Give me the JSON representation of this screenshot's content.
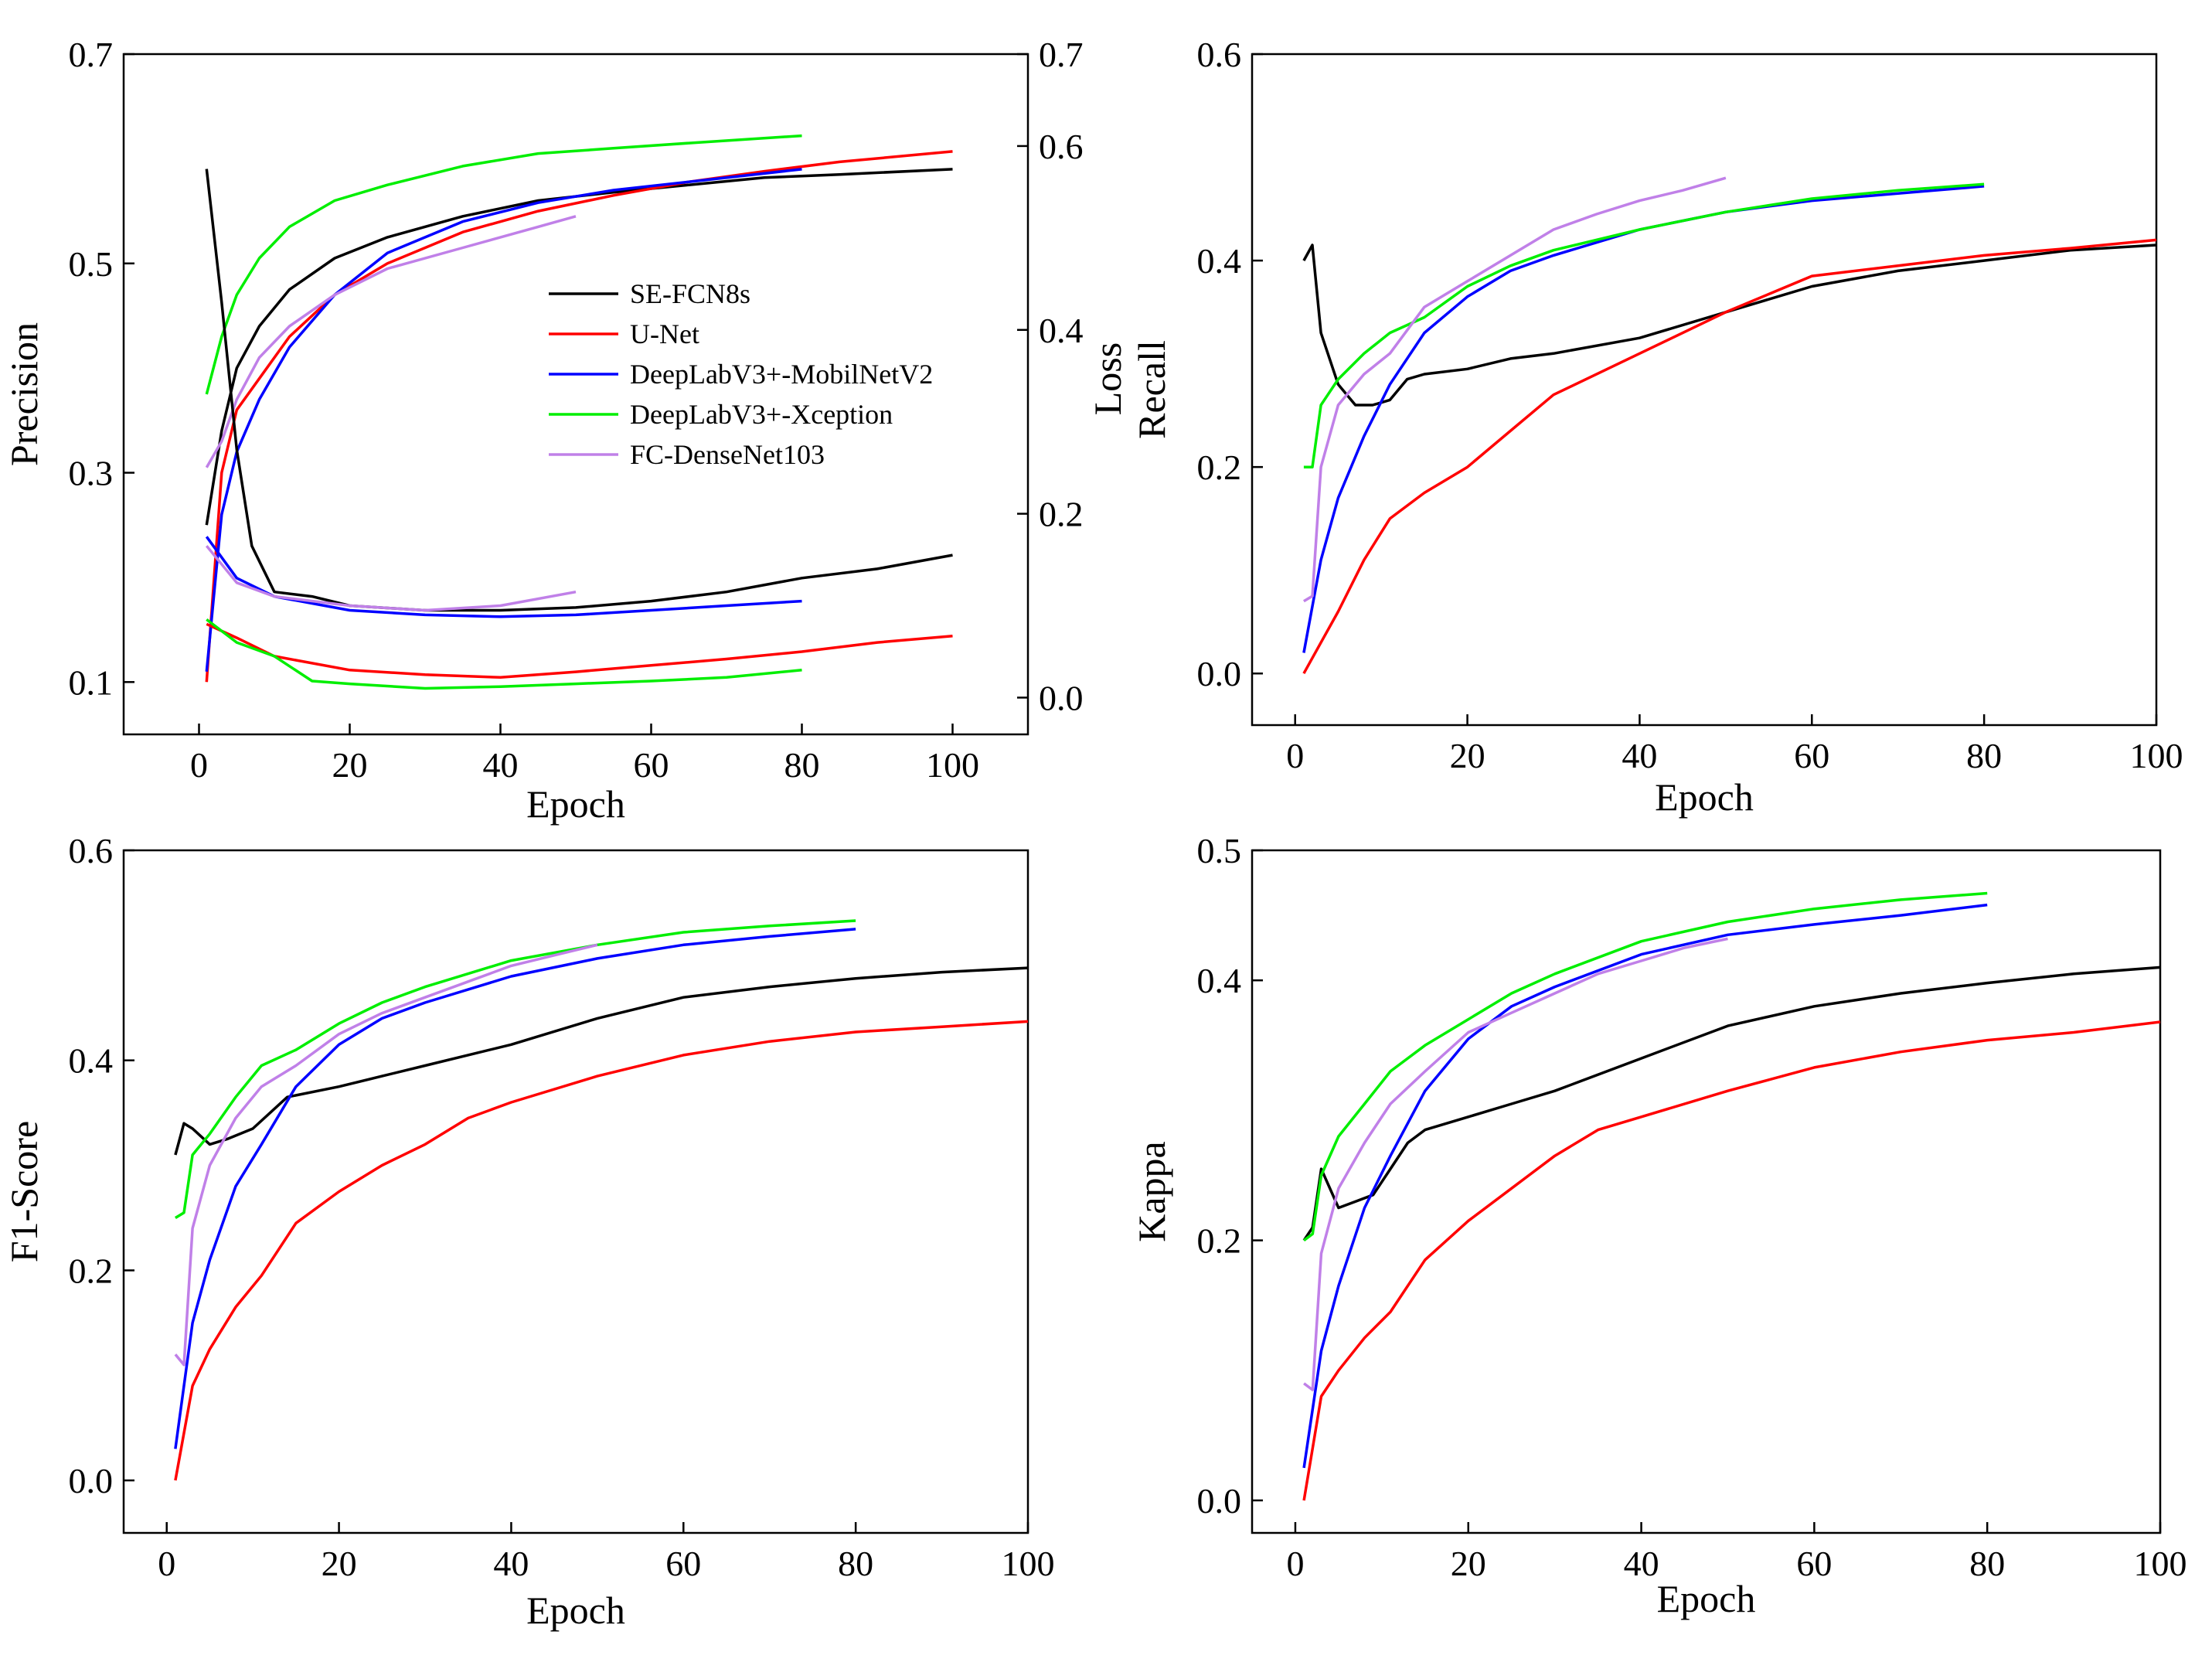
{
  "colors": {
    "SE-FCN8s": "#000000",
    "U-Net": "#ff0000",
    "DeepLabV3+-MobilNetV2": "#0000ff",
    "DeepLabV3+-Xception": "#00ee00",
    "FC-DenseNet103": "#c080e8"
  },
  "legend": {
    "entries": [
      "SE-FCN8s",
      "U-Net",
      "DeepLabV3+-MobilNetV2",
      "DeepLabV3+-Xception",
      "FC-DenseNet103"
    ]
  },
  "chart_data": [
    {
      "id": "precision",
      "type": "line",
      "title": "",
      "xlabel": "Epoch",
      "ylabel": "Precision",
      "y2label": "Loss",
      "xlim": [
        -10,
        110
      ],
      "ylim": [
        0.05,
        0.7
      ],
      "y2lim": [
        -0.04,
        0.7
      ],
      "xticks": [
        0,
        20,
        40,
        60,
        80,
        100
      ],
      "yticks": [
        0.1,
        0.3,
        0.5,
        0.7
      ],
      "y2ticks": [
        0.0,
        0.2,
        0.4,
        0.6,
        0.7
      ],
      "xtick_labels": [
        "0",
        "20",
        "40",
        "60",
        "80",
        "100"
      ],
      "ytick_labels": [
        "0.1",
        "0.3",
        "0.5",
        "0.7"
      ],
      "y2tick_labels": [
        "0.0",
        "0.2",
        "0.4",
        "0.6",
        "0.7"
      ],
      "legend_position": "center",
      "series": [
        {
          "name": "SE-FCN8s",
          "metric": "precision",
          "x": [
            1,
            3,
            5,
            8,
            12,
            18,
            25,
            35,
            45,
            55,
            65,
            75,
            85,
            100
          ],
          "values": [
            0.25,
            0.34,
            0.4,
            0.44,
            0.475,
            0.505,
            0.525,
            0.545,
            0.56,
            0.568,
            0.575,
            0.582,
            0.585,
            0.59
          ]
        },
        {
          "name": "U-Net",
          "metric": "precision",
          "x": [
            1,
            3,
            5,
            8,
            12,
            18,
            25,
            35,
            45,
            55,
            65,
            75,
            85,
            100
          ],
          "values": [
            0.1,
            0.3,
            0.36,
            0.39,
            0.43,
            0.47,
            0.5,
            0.53,
            0.55,
            0.565,
            0.578,
            0.588,
            0.597,
            0.607
          ]
        },
        {
          "name": "DeepLabV3+-MobilNetV2",
          "metric": "precision",
          "x": [
            1,
            3,
            5,
            8,
            12,
            18,
            25,
            35,
            45,
            55,
            65,
            80
          ],
          "values": [
            0.11,
            0.26,
            0.32,
            0.37,
            0.42,
            0.47,
            0.51,
            0.54,
            0.558,
            0.57,
            0.578,
            0.59
          ]
        },
        {
          "name": "DeepLabV3+-Xception",
          "metric": "precision",
          "x": [
            1,
            3,
            5,
            8,
            12,
            18,
            25,
            35,
            45,
            55,
            65,
            80
          ],
          "values": [
            0.375,
            0.43,
            0.47,
            0.505,
            0.535,
            0.56,
            0.575,
            0.593,
            0.605,
            0.61,
            0.615,
            0.622
          ]
        },
        {
          "name": "FC-DenseNet103",
          "metric": "precision",
          "x": [
            1,
            3,
            5,
            8,
            12,
            18,
            25,
            35,
            45,
            50
          ],
          "values": [
            0.305,
            0.33,
            0.37,
            0.41,
            0.44,
            0.47,
            0.495,
            0.515,
            0.535,
            0.545
          ]
        },
        {
          "name": "SE-FCN8s",
          "metric": "loss",
          "x": [
            1,
            3,
            5,
            7,
            10,
            15,
            20,
            30,
            40,
            50,
            60,
            70,
            80,
            90,
            100
          ],
          "values": [
            0.575,
            0.43,
            0.27,
            0.165,
            0.115,
            0.11,
            0.1,
            0.095,
            0.095,
            0.098,
            0.105,
            0.115,
            0.13,
            0.14,
            0.155
          ]
        },
        {
          "name": "U-Net",
          "metric": "loss",
          "x": [
            1,
            5,
            10,
            20,
            30,
            40,
            50,
            60,
            70,
            80,
            90,
            100
          ],
          "values": [
            0.08,
            0.065,
            0.045,
            0.03,
            0.025,
            0.022,
            0.028,
            0.035,
            0.042,
            0.05,
            0.06,
            0.067
          ]
        },
        {
          "name": "DeepLabV3+-MobilNetV2",
          "metric": "loss",
          "x": [
            1,
            5,
            10,
            20,
            30,
            40,
            50,
            60,
            70,
            80
          ],
          "values": [
            0.175,
            0.13,
            0.11,
            0.095,
            0.09,
            0.088,
            0.09,
            0.095,
            0.1,
            0.105
          ]
        },
        {
          "name": "DeepLabV3+-Xception",
          "metric": "loss",
          "x": [
            1,
            5,
            10,
            15,
            20,
            30,
            40,
            50,
            60,
            70,
            80
          ],
          "values": [
            0.085,
            0.06,
            0.045,
            0.018,
            0.015,
            0.01,
            0.012,
            0.015,
            0.018,
            0.022,
            0.03
          ]
        },
        {
          "name": "FC-DenseNet103",
          "metric": "loss",
          "x": [
            1,
            5,
            10,
            20,
            30,
            40,
            50
          ],
          "values": [
            0.165,
            0.125,
            0.11,
            0.1,
            0.095,
            0.1,
            0.115
          ]
        }
      ]
    },
    {
      "id": "recall",
      "type": "line",
      "title": "",
      "xlabel": "Epoch",
      "ylabel": "Recall",
      "xlim": [
        -5,
        100
      ],
      "ylim": [
        -0.05,
        0.6
      ],
      "xticks": [
        0,
        20,
        40,
        60,
        80,
        100
      ],
      "yticks": [
        0.0,
        0.2,
        0.4,
        0.6
      ],
      "xtick_labels": [
        "0",
        "20",
        "40",
        "60",
        "80",
        "100"
      ],
      "ytick_labels": [
        "0.0",
        "0.2",
        "0.4",
        "0.6"
      ],
      "series": [
        {
          "name": "SE-FCN8s",
          "x": [
            1,
            2,
            3,
            5,
            7,
            9,
            11,
            13,
            15,
            20,
            25,
            30,
            40,
            50,
            60,
            70,
            80,
            90,
            100
          ],
          "values": [
            0.4,
            0.415,
            0.33,
            0.28,
            0.26,
            0.26,
            0.265,
            0.285,
            0.29,
            0.295,
            0.305,
            0.31,
            0.325,
            0.35,
            0.375,
            0.39,
            0.4,
            0.41,
            0.415
          ]
        },
        {
          "name": "U-Net",
          "x": [
            1,
            3,
            5,
            8,
            11,
            15,
            20,
            25,
            30,
            40,
            50,
            60,
            70,
            80,
            90,
            100
          ],
          "values": [
            0.0,
            0.03,
            0.06,
            0.11,
            0.15,
            0.175,
            0.2,
            0.235,
            0.27,
            0.31,
            0.35,
            0.385,
            0.395,
            0.405,
            0.412,
            0.42
          ]
        },
        {
          "name": "DeepLabV3+-MobilNetV2",
          "x": [
            1,
            3,
            5,
            8,
            11,
            15,
            20,
            25,
            30,
            40,
            50,
            60,
            70,
            80
          ],
          "values": [
            0.02,
            0.11,
            0.17,
            0.23,
            0.28,
            0.33,
            0.365,
            0.39,
            0.405,
            0.43,
            0.447,
            0.458,
            0.465,
            0.472
          ]
        },
        {
          "name": "DeepLabV3+-Xception",
          "x": [
            1,
            2,
            3,
            5,
            8,
            11,
            15,
            20,
            25,
            30,
            40,
            50,
            60,
            70,
            80
          ],
          "values": [
            0.2,
            0.2,
            0.26,
            0.285,
            0.31,
            0.33,
            0.345,
            0.375,
            0.395,
            0.41,
            0.43,
            0.447,
            0.46,
            0.468,
            0.474
          ]
        },
        {
          "name": "FC-DenseNet103",
          "x": [
            1,
            2,
            3,
            5,
            8,
            11,
            15,
            20,
            25,
            30,
            35,
            40,
            45,
            50
          ],
          "values": [
            0.07,
            0.075,
            0.2,
            0.26,
            0.29,
            0.31,
            0.355,
            0.38,
            0.405,
            0.43,
            0.445,
            0.458,
            0.468,
            0.48
          ]
        }
      ]
    },
    {
      "id": "f1",
      "type": "line",
      "title": "",
      "xlabel": "Epoch",
      "ylabel": "F1-Score",
      "xlim": [
        -5,
        100
      ],
      "ylim": [
        -0.05,
        0.6
      ],
      "xticks": [
        0,
        20,
        40,
        60,
        80,
        100
      ],
      "yticks": [
        0.0,
        0.2,
        0.4,
        0.6
      ],
      "xtick_labels": [
        "0",
        "20",
        "40",
        "60",
        "80",
        "100"
      ],
      "ytick_labels": [
        "0.0",
        "0.2",
        "0.4",
        "0.6"
      ],
      "series": [
        {
          "name": "SE-FCN8s",
          "x": [
            1,
            2,
            3,
            5,
            7,
            10,
            14,
            20,
            25,
            30,
            40,
            50,
            60,
            70,
            80,
            90,
            100
          ],
          "values": [
            0.31,
            0.34,
            0.335,
            0.32,
            0.325,
            0.335,
            0.365,
            0.375,
            0.385,
            0.395,
            0.415,
            0.44,
            0.46,
            0.47,
            0.478,
            0.484,
            0.488
          ]
        },
        {
          "name": "U-Net",
          "x": [
            1,
            3,
            5,
            8,
            11,
            15,
            20,
            25,
            30,
            35,
            40,
            50,
            60,
            70,
            80,
            90,
            100
          ],
          "values": [
            0.0,
            0.09,
            0.125,
            0.165,
            0.195,
            0.245,
            0.275,
            0.3,
            0.32,
            0.345,
            0.36,
            0.385,
            0.405,
            0.418,
            0.427,
            0.432,
            0.437
          ]
        },
        {
          "name": "DeepLabV3+-MobilNetV2",
          "x": [
            1,
            3,
            5,
            8,
            11,
            15,
            20,
            25,
            30,
            40,
            50,
            60,
            70,
            80
          ],
          "values": [
            0.03,
            0.15,
            0.21,
            0.28,
            0.32,
            0.375,
            0.415,
            0.44,
            0.455,
            0.48,
            0.497,
            0.51,
            0.518,
            0.525
          ]
        },
        {
          "name": "DeepLabV3+-Xception",
          "x": [
            1,
            2,
            3,
            5,
            8,
            11,
            15,
            20,
            25,
            30,
            40,
            50,
            60,
            70,
            80
          ],
          "values": [
            0.25,
            0.255,
            0.31,
            0.33,
            0.365,
            0.395,
            0.41,
            0.435,
            0.455,
            0.47,
            0.495,
            0.51,
            0.522,
            0.528,
            0.533
          ]
        },
        {
          "name": "FC-DenseNet103",
          "x": [
            1,
            2,
            3,
            5,
            8,
            11,
            15,
            20,
            25,
            30,
            35,
            40,
            45,
            50
          ],
          "values": [
            0.12,
            0.11,
            0.24,
            0.3,
            0.345,
            0.375,
            0.395,
            0.425,
            0.445,
            0.46,
            0.475,
            0.49,
            0.5,
            0.51
          ]
        }
      ]
    },
    {
      "id": "kappa",
      "type": "line",
      "title": "",
      "xlabel": "Epoch",
      "ylabel": "Kappa",
      "xlim": [
        -5,
        100
      ],
      "ylim": [
        -0.025,
        0.5
      ],
      "xticks": [
        0,
        20,
        40,
        60,
        80,
        100
      ],
      "yticks": [
        0.0,
        0.2,
        0.4,
        0.5
      ],
      "xtick_labels": [
        "0",
        "20",
        "40",
        "60",
        "80",
        "100"
      ],
      "ytick_labels": [
        "0.0",
        "0.2",
        "0.4",
        "0.5"
      ],
      "series": [
        {
          "name": "SE-FCN8s",
          "x": [
            1,
            2,
            3,
            5,
            7,
            9,
            11,
            13,
            15,
            20,
            25,
            30,
            40,
            50,
            60,
            70,
            80,
            90,
            100
          ],
          "values": [
            0.2,
            0.21,
            0.255,
            0.225,
            0.23,
            0.235,
            0.255,
            0.275,
            0.285,
            0.295,
            0.305,
            0.315,
            0.34,
            0.365,
            0.38,
            0.39,
            0.398,
            0.405,
            0.41
          ]
        },
        {
          "name": "U-Net",
          "x": [
            1,
            3,
            5,
            8,
            11,
            15,
            20,
            25,
            30,
            35,
            40,
            50,
            60,
            70,
            80,
            90,
            100
          ],
          "values": [
            0.0,
            0.08,
            0.1,
            0.125,
            0.145,
            0.185,
            0.215,
            0.24,
            0.265,
            0.285,
            0.295,
            0.315,
            0.333,
            0.345,
            0.354,
            0.36,
            0.368
          ]
        },
        {
          "name": "DeepLabV3+-MobilNetV2",
          "x": [
            1,
            3,
            5,
            8,
            11,
            15,
            20,
            25,
            30,
            40,
            50,
            60,
            70,
            80
          ],
          "values": [
            0.025,
            0.115,
            0.165,
            0.225,
            0.265,
            0.315,
            0.355,
            0.38,
            0.395,
            0.42,
            0.435,
            0.443,
            0.45,
            0.458
          ]
        },
        {
          "name": "DeepLabV3+-Xception",
          "x": [
            1,
            2,
            3,
            5,
            8,
            11,
            15,
            20,
            25,
            30,
            40,
            50,
            60,
            70,
            80
          ],
          "values": [
            0.2,
            0.205,
            0.25,
            0.28,
            0.305,
            0.33,
            0.35,
            0.37,
            0.39,
            0.405,
            0.43,
            0.445,
            0.455,
            0.462,
            0.467
          ]
        },
        {
          "name": "FC-DenseNet103",
          "x": [
            1,
            2,
            3,
            5,
            8,
            11,
            15,
            20,
            25,
            30,
            35,
            40,
            45,
            50
          ],
          "values": [
            0.09,
            0.085,
            0.19,
            0.24,
            0.275,
            0.305,
            0.33,
            0.36,
            0.375,
            0.39,
            0.405,
            0.415,
            0.425,
            0.432
          ]
        }
      ]
    }
  ]
}
